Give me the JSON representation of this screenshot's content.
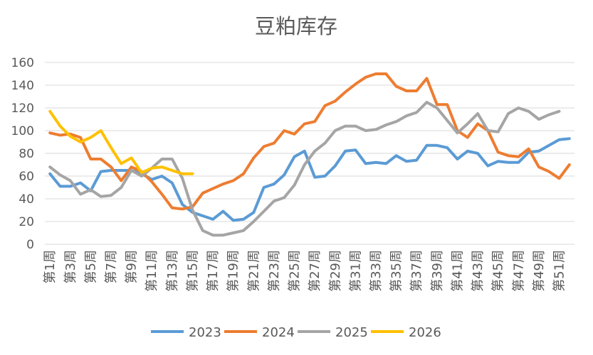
{
  "chart_data": {
    "type": "line",
    "title": "豆粕库存",
    "ylim": [
      0,
      160
    ],
    "yticks": [
      0,
      20,
      40,
      60,
      80,
      100,
      120,
      140,
      160
    ],
    "x_tick_labels": [
      "第1周",
      "第3周",
      "第5周",
      "第7周",
      "第9周",
      "第11周",
      "第13周",
      "第15周",
      "第17周",
      "第19周",
      "第21周",
      "第23周",
      "第25周",
      "第27周",
      "第29周",
      "第31周",
      "第33周",
      "第35周",
      "第37周",
      "第39周",
      "第41周",
      "第43周",
      "第45周",
      "第47周",
      "第49周",
      "第51周"
    ],
    "grid": true,
    "legend": "bottom",
    "series": [
      {
        "name": "2023",
        "color": "#5B9BD5",
        "values": [
          62,
          51,
          51,
          54,
          47,
          64,
          65,
          65,
          65,
          62,
          57,
          60,
          54,
          35,
          28,
          25,
          22,
          29,
          21,
          22,
          28,
          50,
          53,
          61,
          77,
          82,
          59,
          60,
          69,
          82,
          83,
          71,
          72,
          71,
          78,
          73,
          74,
          87,
          87,
          85,
          75,
          82,
          80,
          69,
          73,
          72,
          72,
          81,
          82,
          87,
          92,
          93
        ]
      },
      {
        "name": "2024",
        "color": "#ED7D31",
        "values": [
          98,
          96,
          97,
          94,
          75,
          75,
          68,
          56,
          68,
          64,
          55,
          44,
          32,
          31,
          33,
          45,
          49,
          53,
          56,
          62,
          76,
          86,
          89,
          100,
          97,
          106,
          108,
          122,
          126,
          134,
          141,
          147,
          150,
          150,
          139,
          135,
          135,
          146,
          123,
          123,
          100,
          94,
          106,
          100,
          81,
          78,
          77,
          84,
          68,
          64,
          58,
          70
        ]
      },
      {
        "name": "2025",
        "color": "#A5A5A5",
        "values": [
          68,
          61,
          56,
          44,
          48,
          42,
          43,
          50,
          65,
          60,
          67,
          75,
          75,
          58,
          30,
          12,
          8,
          8,
          10,
          12,
          20,
          29,
          38,
          41,
          52,
          70,
          82,
          89,
          100,
          104,
          104,
          100,
          101,
          105,
          108,
          113,
          116,
          125,
          120,
          109,
          98,
          106,
          115,
          100,
          99,
          115,
          120,
          117,
          110,
          114,
          117
        ]
      },
      {
        "name": "2026",
        "color": "#FFC000",
        "values": [
          117,
          104,
          95,
          90,
          94,
          100,
          85,
          71,
          76,
          63,
          67,
          68,
          65,
          62,
          62
        ]
      }
    ]
  }
}
